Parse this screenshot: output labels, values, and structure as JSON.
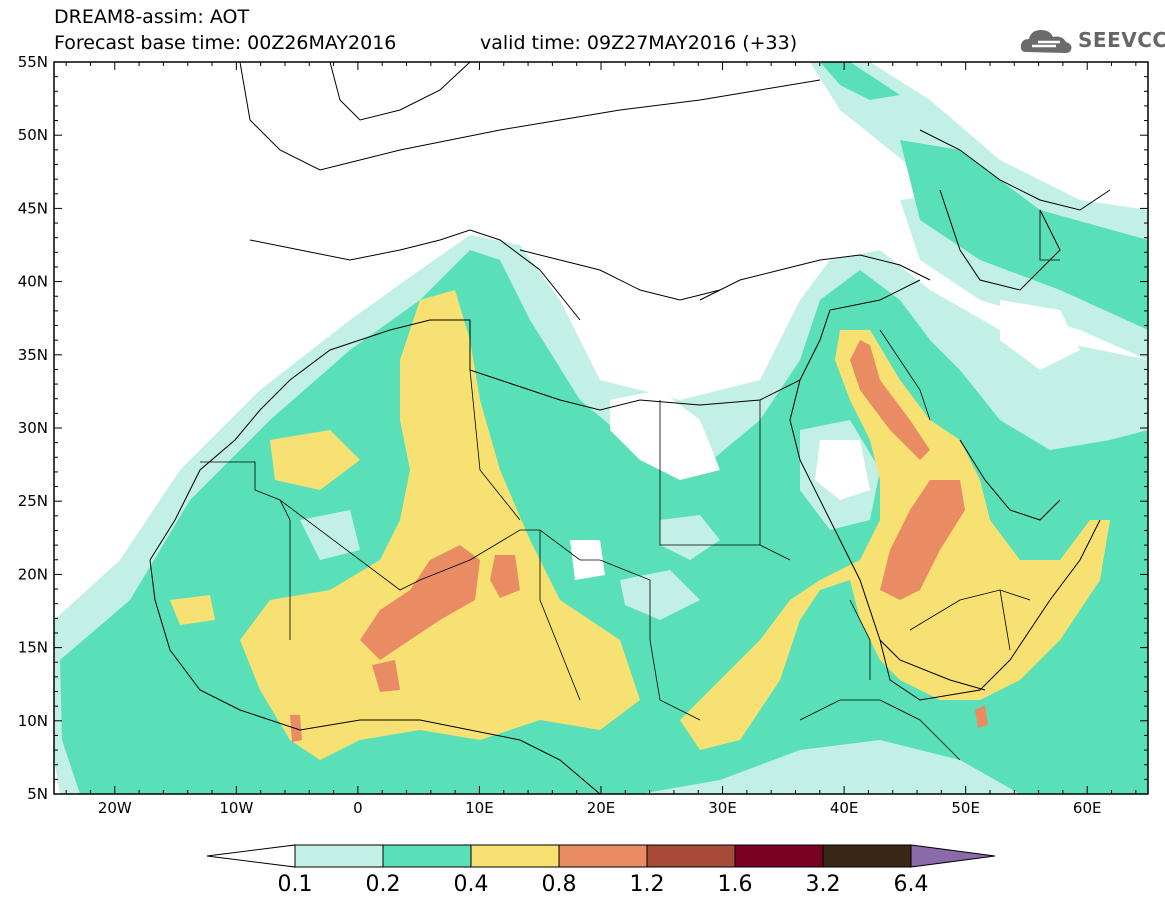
{
  "header": {
    "title_line1": "DREAM8-assim: AOT",
    "title_line2": "Forecast base time: 00Z26MAY2016",
    "valid_time": "valid time: 09Z27MAY2016 (+33)"
  },
  "logo": {
    "text": "SEEVCCC",
    "icon": "cloud-icon"
  },
  "map": {
    "lat_labels": [
      "55N",
      "50N",
      "45N",
      "40N",
      "35N",
      "30N",
      "25N",
      "20N",
      "15N",
      "10N",
      "5N"
    ],
    "lon_labels": [
      "20W",
      "10W",
      "0",
      "10E",
      "20E",
      "30E",
      "40E",
      "50E",
      "60E"
    ],
    "lon_range": [
      -25,
      65
    ],
    "lat_range": [
      5,
      55
    ]
  },
  "colorbar": {
    "labels": [
      "0.1",
      "0.2",
      "0.4",
      "0.8",
      "1.2",
      "1.6",
      "3.2",
      "6.4"
    ],
    "colors": [
      "#ffffff",
      "#c2f0e6",
      "#5ae0b8",
      "#f7e172",
      "#e98c64",
      "#a84a38",
      "#7a0022",
      "#3a2716",
      "#8a6aa8"
    ]
  }
}
